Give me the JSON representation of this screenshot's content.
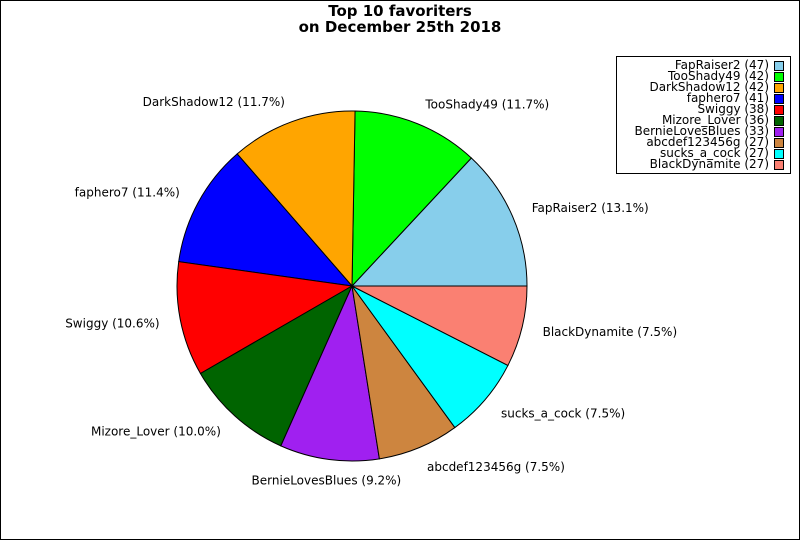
{
  "title_lines": [
    "Top 10 favoriters",
    "on December 25th 2018"
  ],
  "chart_data": {
    "type": "pie",
    "title": "Top 10 favoriters on December 25th 2018",
    "start_angle_deg": 0,
    "direction": "counterclockwise",
    "slices": [
      {
        "label": "FapRaiser2",
        "value": 47,
        "pct_label": "FapRaiser2 (13.1%)",
        "legend": "FapRaiser2 (47)",
        "color": "#87ceeb"
      },
      {
        "label": "TooShady49",
        "value": 42,
        "pct_label": "TooShady49 (11.7%)",
        "legend": "TooShady49 (42)",
        "color": "#00ff00"
      },
      {
        "label": "DarkShadow12",
        "value": 42,
        "pct_label": "DarkShadow12 (11.7%)",
        "legend": "DarkShadow12 (42)",
        "color": "#ffa500"
      },
      {
        "label": "faphero7",
        "value": 41,
        "pct_label": "faphero7 (11.4%)",
        "legend": "faphero7 (41)",
        "color": "#0000ff"
      },
      {
        "label": "Swiggy",
        "value": 38,
        "pct_label": "Swiggy (10.6%)",
        "legend": "Swiggy (38)",
        "color": "#ff0000"
      },
      {
        "label": "Mizore_Lover",
        "value": 36,
        "pct_label": "Mizore_Lover (10.0%)",
        "legend": "Mizore_Lover (36)",
        "color": "#006400"
      },
      {
        "label": "BernieLovesBlues",
        "value": 33,
        "pct_label": "BernieLovesBlues (9.2%)",
        "legend": "BernieLovesBlues (33)",
        "color": "#a020f0"
      },
      {
        "label": "abcdef123456g",
        "value": 27,
        "pct_label": "abcdef123456g (7.5%)",
        "legend": "abcdef123456g (27)",
        "color": "#cd853f"
      },
      {
        "label": "sucks_a_cock",
        "value": 27,
        "pct_label": "sucks_a_cock (7.5%)",
        "legend": "sucks_a_cock (27)",
        "color": "#00ffff"
      },
      {
        "label": "BlackDynamite",
        "value": 27,
        "pct_label": "BlackDynamite (7.5%)",
        "legend": "BlackDynamite (27)",
        "color": "#fa8072"
      }
    ],
    "legend_position": "top-right"
  }
}
